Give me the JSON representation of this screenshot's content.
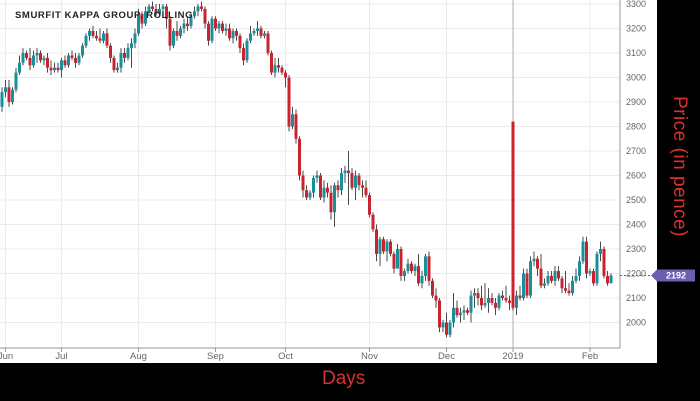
{
  "chart_data": {
    "type": "candlestick",
    "title": "SMURFIT KAPPA GROUP, ROLLING",
    "xlabel": "Days",
    "ylabel": "Price (in pence)",
    "ylim": [
      1920,
      3310
    ],
    "y_ticks": [
      2000,
      2100,
      2200,
      2300,
      2400,
      2500,
      2600,
      2700,
      2800,
      2900,
      3000,
      3100,
      3200,
      3300
    ],
    "x_ticks": [
      {
        "label": "Jun",
        "candle": 1
      },
      {
        "label": "Jul",
        "candle": 17
      },
      {
        "label": "Aug",
        "candle": 39
      },
      {
        "label": "Sep",
        "candle": 61
      },
      {
        "label": "Oct",
        "candle": 81
      },
      {
        "label": "Nov",
        "candle": 105
      },
      {
        "label": "Dec",
        "candle": 127
      },
      {
        "label": "2019",
        "candle": 146
      },
      {
        "label": "Feb",
        "candle": 168
      }
    ],
    "grid": true,
    "last_price": "2192",
    "colors": {
      "up": "#17909c",
      "down": "#c9232f",
      "wick": "#4a4a4a",
      "badge": "#6a5fb0",
      "axis_title": "#d9312f"
    },
    "candles_ohlc": [
      [
        2880,
        2960,
        2860,
        2940
      ],
      [
        2940,
        2990,
        2920,
        2960
      ],
      [
        2960,
        2990,
        2880,
        2900
      ],
      [
        2900,
        2960,
        2890,
        2950
      ],
      [
        2950,
        3040,
        2940,
        3020
      ],
      [
        3020,
        3090,
        3010,
        3060
      ],
      [
        3060,
        3120,
        3050,
        3100
      ],
      [
        3100,
        3110,
        3070,
        3080
      ],
      [
        3080,
        3120,
        3030,
        3050
      ],
      [
        3050,
        3110,
        3040,
        3090
      ],
      [
        3090,
        3120,
        3060,
        3100
      ],
      [
        3100,
        3110,
        3060,
        3070
      ],
      [
        3070,
        3090,
        3050,
        3080
      ],
      [
        3080,
        3100,
        3020,
        3040
      ],
      [
        3040,
        3070,
        3010,
        3030
      ],
      [
        3030,
        3060,
        3020,
        3040
      ],
      [
        3040,
        3060,
        3020,
        3030
      ],
      [
        3030,
        3080,
        3000,
        3070
      ],
      [
        3070,
        3090,
        3040,
        3050
      ],
      [
        3050,
        3100,
        3040,
        3090
      ],
      [
        3090,
        3110,
        3070,
        3080
      ],
      [
        3080,
        3100,
        3040,
        3060
      ],
      [
        3060,
        3100,
        3050,
        3090
      ],
      [
        3090,
        3140,
        3080,
        3130
      ],
      [
        3130,
        3180,
        3120,
        3170
      ],
      [
        3170,
        3200,
        3150,
        3190
      ],
      [
        3190,
        3210,
        3160,
        3170
      ],
      [
        3170,
        3190,
        3150,
        3160
      ],
      [
        3160,
        3200,
        3140,
        3150
      ],
      [
        3150,
        3190,
        3140,
        3180
      ],
      [
        3180,
        3200,
        3120,
        3130
      ],
      [
        3130,
        3140,
        3060,
        3080
      ],
      [
        3080,
        3090,
        3020,
        3030
      ],
      [
        3030,
        3060,
        3020,
        3040
      ],
      [
        3040,
        3120,
        3020,
        3100
      ],
      [
        3100,
        3120,
        3060,
        3080
      ],
      [
        3080,
        3140,
        3070,
        3120
      ],
      [
        3120,
        3160,
        3040,
        3140
      ],
      [
        3140,
        3200,
        3120,
        3180
      ],
      [
        3180,
        3280,
        3170,
        3260
      ],
      [
        3260,
        3270,
        3200,
        3220
      ],
      [
        3220,
        3290,
        3210,
        3270
      ],
      [
        3270,
        3300,
        3260,
        3290
      ],
      [
        3290,
        3310,
        3270,
        3280
      ],
      [
        3280,
        3300,
        3250,
        3260
      ],
      [
        3260,
        3300,
        3250,
        3280
      ],
      [
        3280,
        3300,
        3260,
        3290
      ],
      [
        3290,
        3300,
        3200,
        3240
      ],
      [
        3240,
        3250,
        3110,
        3130
      ],
      [
        3130,
        3200,
        3120,
        3190
      ],
      [
        3190,
        3230,
        3150,
        3170
      ],
      [
        3170,
        3210,
        3160,
        3200
      ],
      [
        3200,
        3240,
        3180,
        3220
      ],
      [
        3220,
        3250,
        3190,
        3210
      ],
      [
        3210,
        3260,
        3200,
        3250
      ],
      [
        3250,
        3290,
        3240,
        3270
      ],
      [
        3270,
        3300,
        3250,
        3290
      ],
      [
        3290,
        3310,
        3270,
        3280
      ],
      [
        3280,
        3290,
        3200,
        3220
      ],
      [
        3220,
        3230,
        3130,
        3150
      ],
      [
        3150,
        3250,
        3140,
        3240
      ],
      [
        3240,
        3250,
        3190,
        3200
      ],
      [
        3200,
        3230,
        3180,
        3220
      ],
      [
        3220,
        3230,
        3180,
        3190
      ],
      [
        3190,
        3220,
        3170,
        3200
      ],
      [
        3200,
        3220,
        3150,
        3160
      ],
      [
        3160,
        3200,
        3140,
        3190
      ],
      [
        3190,
        3200,
        3150,
        3170
      ],
      [
        3170,
        3180,
        3100,
        3120
      ],
      [
        3120,
        3140,
        3050,
        3070
      ],
      [
        3070,
        3160,
        3060,
        3150
      ],
      [
        3150,
        3210,
        3140,
        3180
      ],
      [
        3180,
        3200,
        3170,
        3190
      ],
      [
        3190,
        3230,
        3170,
        3200
      ],
      [
        3200,
        3210,
        3160,
        3170
      ],
      [
        3170,
        3190,
        3160,
        3180
      ],
      [
        3180,
        3190,
        3090,
        3100
      ],
      [
        3100,
        3110,
        3010,
        3020
      ],
      [
        3020,
        3080,
        3000,
        3050
      ],
      [
        3050,
        3080,
        3020,
        3040
      ],
      [
        3040,
        3050,
        3010,
        3020
      ],
      [
        3020,
        3030,
        2960,
        3000
      ],
      [
        3000,
        3010,
        2780,
        2800
      ],
      [
        2800,
        2880,
        2790,
        2850
      ],
      [
        2850,
        2870,
        2730,
        2750
      ],
      [
        2750,
        2760,
        2580,
        2600
      ],
      [
        2600,
        2620,
        2510,
        2540
      ],
      [
        2540,
        2560,
        2500,
        2510
      ],
      [
        2510,
        2540,
        2500,
        2530
      ],
      [
        2530,
        2600,
        2510,
        2590
      ],
      [
        2590,
        2620,
        2570,
        2600
      ],
      [
        2600,
        2610,
        2500,
        2510
      ],
      [
        2510,
        2580,
        2490,
        2550
      ],
      [
        2550,
        2570,
        2510,
        2530
      ],
      [
        2530,
        2560,
        2420,
        2450
      ],
      [
        2450,
        2570,
        2390,
        2560
      ],
      [
        2560,
        2580,
        2510,
        2540
      ],
      [
        2540,
        2630,
        2520,
        2610
      ],
      [
        2610,
        2640,
        2570,
        2620
      ],
      [
        2620,
        2700,
        2480,
        2610
      ],
      [
        2610,
        2630,
        2540,
        2550
      ],
      [
        2550,
        2620,
        2500,
        2600
      ],
      [
        2600,
        2610,
        2540,
        2560
      ],
      [
        2560,
        2580,
        2510,
        2550
      ],
      [
        2550,
        2580,
        2510,
        2520
      ],
      [
        2520,
        2530,
        2430,
        2440
      ],
      [
        2440,
        2450,
        2370,
        2380
      ],
      [
        2380,
        2400,
        2250,
        2280
      ],
      [
        2280,
        2350,
        2230,
        2340
      ],
      [
        2340,
        2350,
        2280,
        2290
      ],
      [
        2290,
        2340,
        2250,
        2330
      ],
      [
        2330,
        2340,
        2270,
        2280
      ],
      [
        2280,
        2290,
        2200,
        2220
      ],
      [
        2220,
        2320,
        2220,
        2300
      ],
      [
        2300,
        2310,
        2170,
        2190
      ],
      [
        2190,
        2220,
        2170,
        2210
      ],
      [
        2210,
        2260,
        2200,
        2240
      ],
      [
        2240,
        2250,
        2200,
        2210
      ],
      [
        2210,
        2240,
        2190,
        2230
      ],
      [
        2230,
        2280,
        2150,
        2160
      ],
      [
        2160,
        2210,
        2140,
        2190
      ],
      [
        2190,
        2280,
        2170,
        2270
      ],
      [
        2270,
        2290,
        2150,
        2170
      ],
      [
        2170,
        2180,
        2100,
        2110
      ],
      [
        2110,
        2140,
        2060,
        2090
      ],
      [
        2090,
        2100,
        1960,
        1980
      ],
      [
        1980,
        2010,
        1960,
        2000
      ],
      [
        2000,
        2040,
        1940,
        1950
      ],
      [
        1950,
        2010,
        1940,
        2000
      ],
      [
        2000,
        2120,
        1980,
        2060
      ],
      [
        2060,
        2090,
        2020,
        2030
      ],
      [
        2030,
        2060,
        2000,
        2040
      ],
      [
        2040,
        2070,
        2010,
        2050
      ],
      [
        2050,
        2060,
        2030,
        2040
      ],
      [
        2040,
        2130,
        2000,
        2110
      ],
      [
        2110,
        2140,
        2060,
        2120
      ],
      [
        2120,
        2140,
        2070,
        2100
      ],
      [
        2100,
        2150,
        2050,
        2070
      ],
      [
        2070,
        2160,
        2060,
        2080
      ],
      [
        2080,
        2140,
        2040,
        2100
      ],
      [
        2100,
        2120,
        2070,
        2080
      ],
      [
        2080,
        2100,
        2030,
        2060
      ],
      [
        2060,
        2120,
        2050,
        2110
      ],
      [
        2110,
        2130,
        2090,
        2100
      ],
      [
        2100,
        2150,
        2080,
        2090
      ],
      [
        2090,
        2110,
        2050,
        2080
      ],
      [
        2820,
        2820,
        2050,
        2060
      ],
      [
        2060,
        2130,
        2030,
        2110
      ],
      [
        2110,
        2150,
        2090,
        2100
      ],
      [
        2100,
        2220,
        2090,
        2200
      ],
      [
        2200,
        2220,
        2100,
        2110
      ],
      [
        2110,
        2270,
        2100,
        2250
      ],
      [
        2250,
        2290,
        2230,
        2260
      ],
      [
        2260,
        2270,
        2190,
        2220
      ],
      [
        2220,
        2280,
        2140,
        2150
      ],
      [
        2150,
        2180,
        2140,
        2160
      ],
      [
        2160,
        2210,
        2150,
        2190
      ],
      [
        2190,
        2210,
        2160,
        2170
      ],
      [
        2170,
        2230,
        2150,
        2210
      ],
      [
        2210,
        2230,
        2170,
        2180
      ],
      [
        2180,
        2190,
        2120,
        2140
      ],
      [
        2140,
        2210,
        2120,
        2130
      ],
      [
        2130,
        2160,
        2110,
        2120
      ],
      [
        2120,
        2190,
        2110,
        2170
      ],
      [
        2170,
        2220,
        2160,
        2190
      ],
      [
        2190,
        2270,
        2170,
        2250
      ],
      [
        2250,
        2350,
        2240,
        2330
      ],
      [
        2330,
        2350,
        2180,
        2200
      ],
      [
        2200,
        2220,
        2190,
        2210
      ],
      [
        2210,
        2220,
        2150,
        2160
      ],
      [
        2160,
        2290,
        2150,
        2280
      ],
      [
        2280,
        2330,
        2250,
        2300
      ],
      [
        2300,
        2310,
        2180,
        2190
      ],
      [
        2190,
        2210,
        2150,
        2160
      ],
      [
        2160,
        2200,
        2160,
        2192
      ]
    ]
  }
}
